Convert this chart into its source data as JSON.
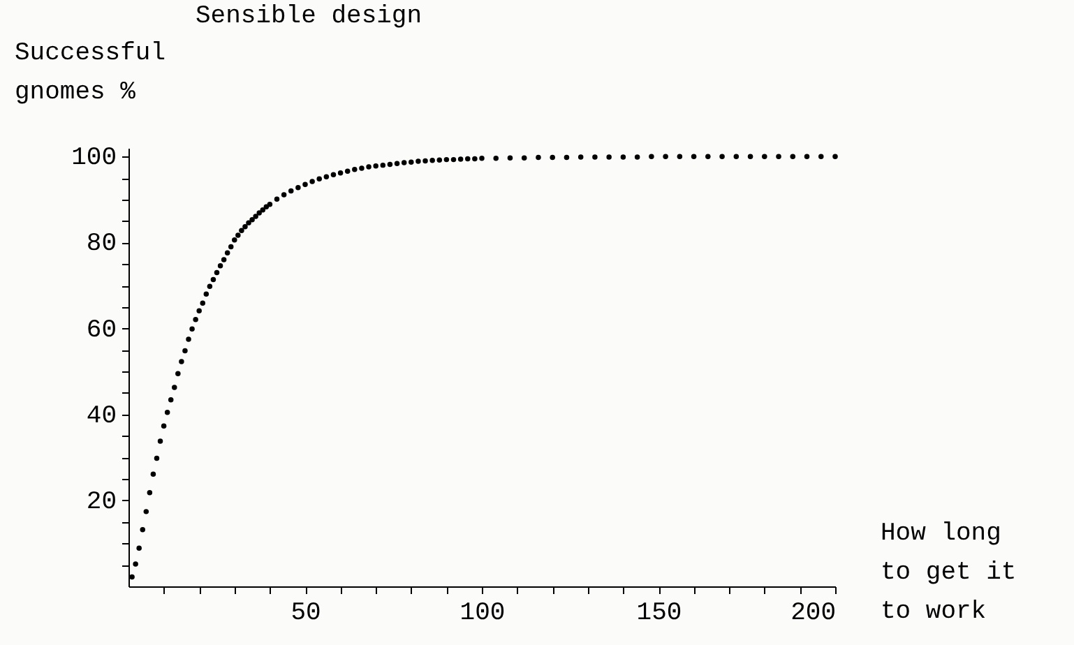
{
  "chart_data": {
    "type": "scatter",
    "title": "Sensible design",
    "xlabel": "How long to get it to work",
    "ylabel": "Successful gnomes %",
    "x": [
      1,
      2,
      3,
      4,
      5,
      6,
      7,
      8,
      9,
      10,
      11,
      12,
      13,
      14,
      15,
      16,
      17,
      18,
      19,
      20,
      21,
      22,
      23,
      24,
      25,
      26,
      27,
      28,
      29,
      30,
      31,
      32,
      33,
      34,
      35,
      36,
      37,
      38,
      39,
      40,
      42,
      44,
      46,
      48,
      50,
      52,
      54,
      56,
      58,
      60,
      62,
      64,
      66,
      68,
      70,
      72,
      74,
      76,
      78,
      80,
      82,
      84,
      86,
      88,
      90,
      92,
      94,
      96,
      98,
      100,
      104,
      108,
      112,
      116,
      120,
      124,
      128,
      132,
      136,
      140,
      144,
      148,
      152,
      156,
      160,
      164,
      168,
      172,
      176,
      180,
      184,
      188,
      192,
      196,
      200
    ],
    "series": [
      {
        "color": "#000000",
        "values": [
          2.2,
          5.2,
          8.9,
          13.2,
          17.4,
          21.8,
          26.1,
          29.8,
          33.8,
          37.3,
          40.5,
          43.4,
          46.3,
          49.5,
          52.3,
          54.8,
          57.5,
          59.9,
          62.1,
          64.1,
          65.9,
          68.0,
          69.8,
          71.4,
          73.0,
          74.6,
          76.0,
          77.6,
          79.0,
          80.6,
          81.7,
          82.8,
          83.7,
          84.6,
          85.3,
          86.1,
          86.9,
          87.6,
          88.3,
          88.9,
          90.1,
          91.1,
          92.0,
          92.8,
          93.5,
          94.2,
          94.8,
          95.3,
          95.8,
          96.2,
          96.6,
          97.0,
          97.3,
          97.6,
          97.8,
          98.0,
          98.2,
          98.4,
          98.6,
          98.7,
          98.9,
          99.0,
          99.1,
          99.2,
          99.3,
          99.3,
          99.4,
          99.5,
          99.5,
          99.6,
          99.6,
          99.7,
          99.7,
          99.8,
          99.8,
          99.8,
          99.9,
          99.9,
          99.9,
          99.9,
          99.9,
          100,
          100,
          100,
          100,
          100,
          100,
          100,
          100,
          100,
          100,
          100,
          100,
          100,
          100
        ]
      }
    ],
    "xlim": [
      0,
      200
    ],
    "ylim": [
      0,
      102
    ],
    "xticks": [
      {
        "value": 10,
        "label": null
      },
      {
        "value": 20,
        "label": null
      },
      {
        "value": 30,
        "label": null
      },
      {
        "value": 40,
        "label": null
      },
      50,
      {
        "value": 60,
        "label": null
      },
      {
        "value": 70,
        "label": null
      },
      {
        "value": 80,
        "label": null
      },
      {
        "value": 90,
        "label": null
      },
      100,
      {
        "value": 110,
        "label": null
      },
      {
        "value": 120,
        "label": null
      },
      {
        "value": 130,
        "label": null
      },
      {
        "value": 140,
        "label": null
      },
      150,
      {
        "value": 160,
        "label": null
      },
      {
        "value": 170,
        "label": null
      },
      {
        "value": 180,
        "label": null
      },
      {
        "value": 190,
        "label": null
      },
      200
    ],
    "yticks": [
      {
        "value": 5,
        "label": null
      },
      {
        "value": 10,
        "label": null
      },
      {
        "value": 15,
        "label": null
      },
      20,
      {
        "value": 25,
        "label": null
      },
      {
        "value": 30,
        "label": null
      },
      {
        "value": 35,
        "label": null
      },
      40,
      {
        "value": 45,
        "label": null
      },
      {
        "value": 50,
        "label": null
      },
      {
        "value": 55,
        "label": null
      },
      60,
      {
        "value": 65,
        "label": null
      },
      {
        "value": 70,
        "label": null
      },
      {
        "value": 75,
        "label": null
      },
      80,
      {
        "value": 85,
        "label": null
      },
      {
        "value": 90,
        "label": null
      },
      {
        "value": 95,
        "label": null
      },
      100
    ],
    "grid": false,
    "marker": "circle"
  }
}
